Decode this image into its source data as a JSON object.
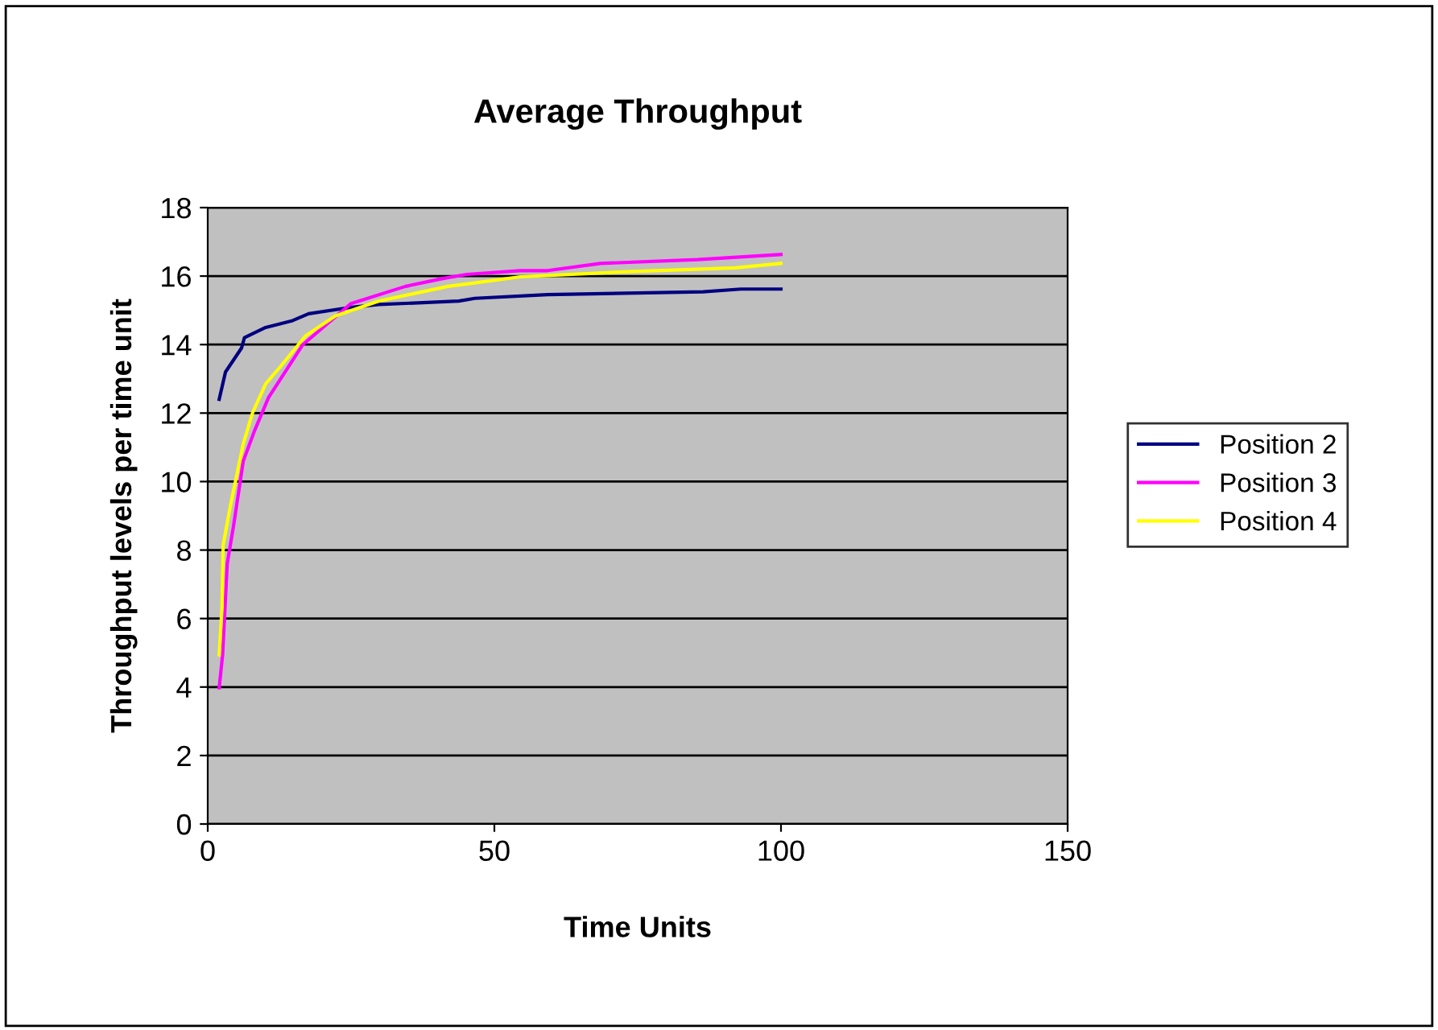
{
  "chart_data": {
    "type": "line",
    "title": "Average Throughput",
    "xlabel": "Time Units",
    "ylabel": "Throughput levels per time unit",
    "xlim": [
      0,
      150
    ],
    "xticks": [
      0,
      50,
      100,
      150
    ],
    "ylim": [
      0,
      18
    ],
    "yticks": [
      0,
      2,
      4,
      6,
      8,
      10,
      12,
      14,
      16,
      18
    ],
    "grid": "y",
    "legend": "right",
    "marker": "none",
    "line_style": "solid",
    "series": [
      {
        "name": "Position 2",
        "color": "#000080",
        "x": [
          2,
          3.1,
          5.9,
          6.4,
          10.1,
          14.8,
          17.6,
          24.2,
          29.8,
          43.8,
          46.6,
          59.3,
          86.4,
          93,
          100
        ],
        "values": [
          12.4,
          13.2,
          13.9,
          14.2,
          14.5,
          14.7,
          14.9,
          15.07,
          15.17,
          15.27,
          15.35,
          15.46,
          15.54,
          15.62,
          15.62
        ]
      },
      {
        "name": "Position 3",
        "color": "#ff00ff",
        "x": [
          2,
          2.6,
          3.4,
          4.5,
          6.2,
          8.2,
          10.6,
          16.6,
          22.2,
          25,
          34.5,
          41,
          45.2,
          54.5,
          59.3,
          68.5,
          85.4,
          100
        ],
        "values": [
          3.98,
          4.95,
          7.6,
          8.7,
          10.6,
          11.5,
          12.45,
          14.0,
          14.8,
          15.2,
          15.7,
          15.93,
          16.05,
          16.16,
          16.16,
          16.37,
          16.48,
          16.63
        ]
      },
      {
        "name": "Position 4",
        "color": "#ffff00",
        "x": [
          2,
          2.5,
          2.7,
          4.0,
          6.2,
          7.8,
          10.1,
          12.9,
          17.1,
          22.3,
          29.8,
          41.9,
          45.2,
          54.5,
          73.3,
          92,
          100
        ],
        "values": [
          4.94,
          6.35,
          8.15,
          9.33,
          11.1,
          12.0,
          12.85,
          13.4,
          14.26,
          14.84,
          15.27,
          15.7,
          15.77,
          15.98,
          16.13,
          16.24,
          16.37
        ]
      }
    ]
  }
}
